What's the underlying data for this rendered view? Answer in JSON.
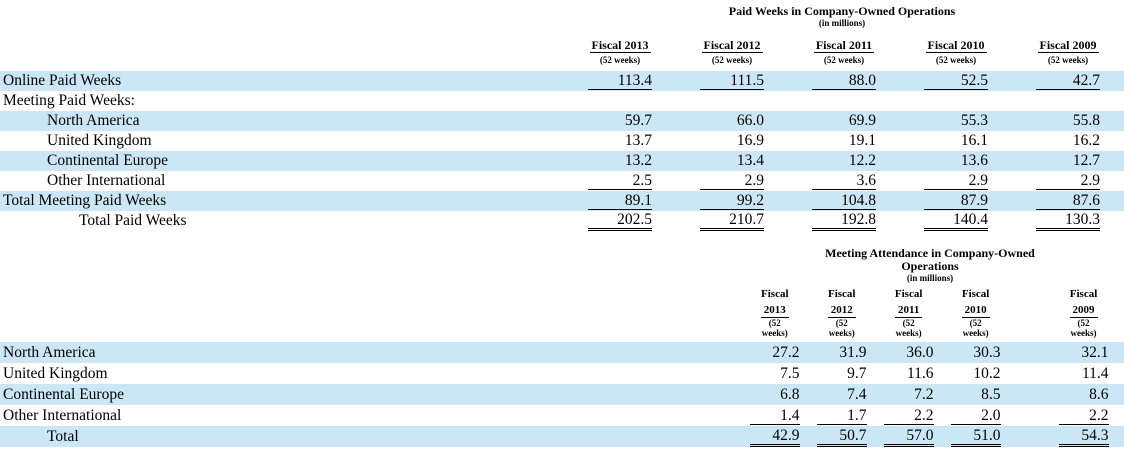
{
  "page": {
    "background": "#ffffff",
    "highlight_color": "#cbe7f5",
    "text_color": "#000000"
  },
  "table1": {
    "title": "Paid Weeks in Company-Owned Operations",
    "subtitle": "(in millions)",
    "columns": [
      {
        "year": "Fiscal 2013",
        "weeks": "(52 weeks)"
      },
      {
        "year": "Fiscal 2012",
        "weeks": "(52 weeks)"
      },
      {
        "year": "Fiscal 2011",
        "weeks": "(52 weeks)"
      },
      {
        "year": "Fiscal 2010",
        "weeks": "(52 weeks)"
      },
      {
        "year": "Fiscal 2009",
        "weeks": "(52 weeks)"
      }
    ],
    "rows": [
      {
        "label": "Online Paid Weeks",
        "indent": 0,
        "highlight": true,
        "rule": "single",
        "values": [
          "113.4",
          "111.5",
          "88.0",
          "52.5",
          "42.7"
        ]
      },
      {
        "label": "Meeting Paid Weeks:",
        "indent": 0,
        "highlight": false,
        "rule": "none",
        "values": []
      },
      {
        "label": "North America",
        "indent": 1,
        "highlight": true,
        "rule": "none",
        "values": [
          "59.7",
          "66.0",
          "69.9",
          "55.3",
          "55.8"
        ]
      },
      {
        "label": "United Kingdom",
        "indent": 1,
        "highlight": false,
        "rule": "none",
        "values": [
          "13.7",
          "16.9",
          "19.1",
          "16.1",
          "16.2"
        ]
      },
      {
        "label": "Continental Europe",
        "indent": 1,
        "highlight": true,
        "rule": "none",
        "values": [
          "13.2",
          "13.4",
          "12.2",
          "13.6",
          "12.7"
        ]
      },
      {
        "label": "Other International",
        "indent": 1,
        "highlight": false,
        "rule": "single",
        "values": [
          "2.5",
          "2.9",
          "3.6",
          "2.9",
          "2.9"
        ]
      },
      {
        "label": "Total Meeting Paid Weeks",
        "indent": 0,
        "highlight": true,
        "rule": "single",
        "values": [
          "89.1",
          "99.2",
          "104.8",
          "87.9",
          "87.6"
        ]
      },
      {
        "label": "Total Paid Weeks",
        "indent": 2,
        "highlight": false,
        "rule": "double",
        "values": [
          "202.5",
          "210.7",
          "192.8",
          "140.4",
          "130.3"
        ]
      }
    ]
  },
  "table2": {
    "title_line1": "Meeting Attendance in Company-Owned",
    "title_line2": "Operations",
    "subtitle": "(in millions)",
    "columns": [
      {
        "line1": "Fiscal",
        "line2": "2013",
        "line3": "(52",
        "line4": "weeks)"
      },
      {
        "line1": "Fiscal",
        "line2": "2012",
        "line3": "(52",
        "line4": "weeks)"
      },
      {
        "line1": "Fiscal",
        "line2": "2011",
        "line3": "(52",
        "line4": "weeks)"
      },
      {
        "line1": "Fiscal",
        "line2": "2010",
        "line3": "(52",
        "line4": "weeks)"
      },
      {
        "line1": "Fiscal",
        "line2": "2009",
        "line3": "(52",
        "line4": "weeks)"
      }
    ],
    "rows": [
      {
        "label": "North America",
        "indent": 0,
        "highlight": true,
        "rule": "none",
        "values": [
          "27.2",
          "31.9",
          "36.0",
          "30.3",
          "32.1"
        ]
      },
      {
        "label": "United Kingdom",
        "indent": 0,
        "highlight": false,
        "rule": "none",
        "values": [
          "7.5",
          "9.7",
          "11.6",
          "10.2",
          "11.4"
        ]
      },
      {
        "label": "Continental Europe",
        "indent": 0,
        "highlight": true,
        "rule": "none",
        "values": [
          "6.8",
          "7.4",
          "7.2",
          "8.5",
          "8.6"
        ]
      },
      {
        "label": "Other International",
        "indent": 0,
        "highlight": false,
        "rule": "single",
        "values": [
          "1.4",
          "1.7",
          "2.2",
          "2.0",
          "2.2"
        ]
      },
      {
        "label": "Total",
        "indent": 1,
        "highlight": true,
        "rule": "double",
        "values": [
          "42.9",
          "50.7",
          "57.0",
          "51.0",
          "54.3"
        ]
      }
    ]
  }
}
